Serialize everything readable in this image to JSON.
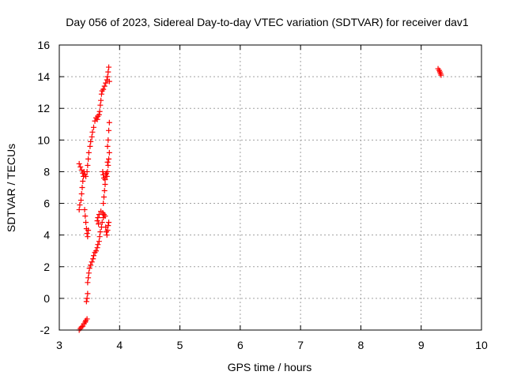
{
  "chart_data": {
    "type": "scatter",
    "title": "Day 056 of 2023, Sidereal Day-to-day VTEC variation (SDTVAR) for receiver dav1",
    "xlabel": "GPS time / hours",
    "ylabel": "SDTVAR / TECUs",
    "xlim": [
      3,
      10
    ],
    "ylim": [
      -2,
      16
    ],
    "xticks": [
      3,
      4,
      5,
      6,
      7,
      8,
      9,
      10
    ],
    "yticks": [
      -2,
      0,
      2,
      4,
      6,
      8,
      10,
      12,
      14,
      16
    ],
    "grid": true,
    "marker": "+",
    "colors": {
      "marker": "#ff0000",
      "grid": "#a0a0a0",
      "axis": "#000000"
    },
    "series": [
      {
        "name": "dav1",
        "points": [
          [
            3.33,
            -2.0
          ],
          [
            3.35,
            -1.9
          ],
          [
            3.37,
            -1.8
          ],
          [
            3.39,
            -1.75
          ],
          [
            3.41,
            -1.6
          ],
          [
            3.43,
            -1.5
          ],
          [
            3.44,
            -1.4
          ],
          [
            3.46,
            -1.3
          ],
          [
            3.45,
            -0.2
          ],
          [
            3.46,
            0.0
          ],
          [
            3.47,
            0.3
          ],
          [
            3.47,
            1.0
          ],
          [
            3.48,
            1.3
          ],
          [
            3.49,
            1.6
          ],
          [
            3.5,
            1.9
          ],
          [
            3.52,
            2.1
          ],
          [
            3.54,
            2.3
          ],
          [
            3.56,
            2.5
          ],
          [
            3.57,
            2.7
          ],
          [
            3.59,
            2.9
          ],
          [
            3.61,
            3.0
          ],
          [
            3.63,
            3.2
          ],
          [
            3.64,
            3.4
          ],
          [
            3.66,
            3.6
          ],
          [
            3.67,
            3.9
          ],
          [
            3.68,
            4.2
          ],
          [
            3.7,
            4.5
          ],
          [
            3.71,
            4.8
          ],
          [
            3.73,
            5.1
          ],
          [
            3.74,
            5.3
          ],
          [
            3.72,
            5.4
          ],
          [
            3.69,
            5.5
          ],
          [
            3.66,
            5.3
          ],
          [
            3.64,
            5.1
          ],
          [
            3.63,
            4.9
          ],
          [
            3.65,
            4.7
          ],
          [
            3.77,
            4.5
          ],
          [
            3.78,
            4.2
          ],
          [
            3.79,
            4.0
          ],
          [
            3.8,
            4.3
          ],
          [
            3.81,
            4.6
          ],
          [
            3.82,
            4.8
          ],
          [
            3.76,
            5.2
          ],
          [
            3.33,
            5.6
          ],
          [
            3.34,
            5.9
          ],
          [
            3.36,
            6.2
          ],
          [
            3.37,
            6.6
          ],
          [
            3.38,
            7.0
          ],
          [
            3.39,
            7.4
          ],
          [
            3.4,
            7.7
          ],
          [
            3.41,
            8.0
          ],
          [
            3.42,
            5.6
          ],
          [
            3.43,
            5.2
          ],
          [
            3.44,
            4.8
          ],
          [
            3.45,
            4.4
          ],
          [
            3.46,
            4.1
          ],
          [
            3.47,
            3.9
          ],
          [
            3.48,
            4.3
          ],
          [
            3.33,
            8.5
          ],
          [
            3.35,
            8.3
          ],
          [
            3.37,
            8.1
          ],
          [
            3.39,
            7.9
          ],
          [
            3.42,
            7.8
          ],
          [
            3.44,
            7.7
          ],
          [
            3.46,
            8.0
          ],
          [
            3.47,
            8.4
          ],
          [
            3.48,
            8.8
          ],
          [
            3.49,
            9.2
          ],
          [
            3.51,
            9.6
          ],
          [
            3.52,
            9.9
          ],
          [
            3.54,
            10.2
          ],
          [
            3.55,
            10.5
          ],
          [
            3.57,
            10.8
          ],
          [
            3.59,
            11.2
          ],
          [
            3.61,
            11.4
          ],
          [
            3.63,
            11.3
          ],
          [
            3.64,
            11.5
          ],
          [
            3.66,
            11.6
          ],
          [
            3.67,
            11.8
          ],
          [
            3.68,
            12.2
          ],
          [
            3.69,
            12.5
          ],
          [
            3.7,
            12.9
          ],
          [
            3.71,
            13.1
          ],
          [
            3.73,
            13.2
          ],
          [
            3.75,
            13.4
          ],
          [
            3.77,
            13.6
          ],
          [
            3.79,
            13.8
          ],
          [
            3.8,
            14.0
          ],
          [
            3.81,
            14.3
          ],
          [
            3.82,
            14.6
          ],
          [
            3.83,
            13.7
          ],
          [
            3.72,
            8.0
          ],
          [
            3.73,
            7.8
          ],
          [
            3.74,
            7.6
          ],
          [
            3.76,
            7.5
          ],
          [
            3.77,
            7.8
          ],
          [
            3.79,
            7.7
          ],
          [
            3.8,
            8.0
          ],
          [
            3.81,
            8.4
          ],
          [
            3.82,
            8.8
          ],
          [
            3.83,
            9.2
          ],
          [
            3.8,
            9.6
          ],
          [
            3.81,
            10.0
          ],
          [
            3.82,
            10.6
          ],
          [
            3.83,
            11.1
          ],
          [
            3.74,
            6.4
          ],
          [
            3.73,
            6.0
          ],
          [
            3.75,
            6.8
          ],
          [
            3.76,
            7.2
          ],
          [
            3.78,
            7.9
          ],
          [
            3.8,
            8.6
          ],
          [
            9.28,
            14.5
          ],
          [
            9.3,
            14.4
          ],
          [
            9.31,
            14.3
          ],
          [
            9.32,
            14.2
          ],
          [
            9.33,
            14.1
          ]
        ]
      }
    ]
  }
}
